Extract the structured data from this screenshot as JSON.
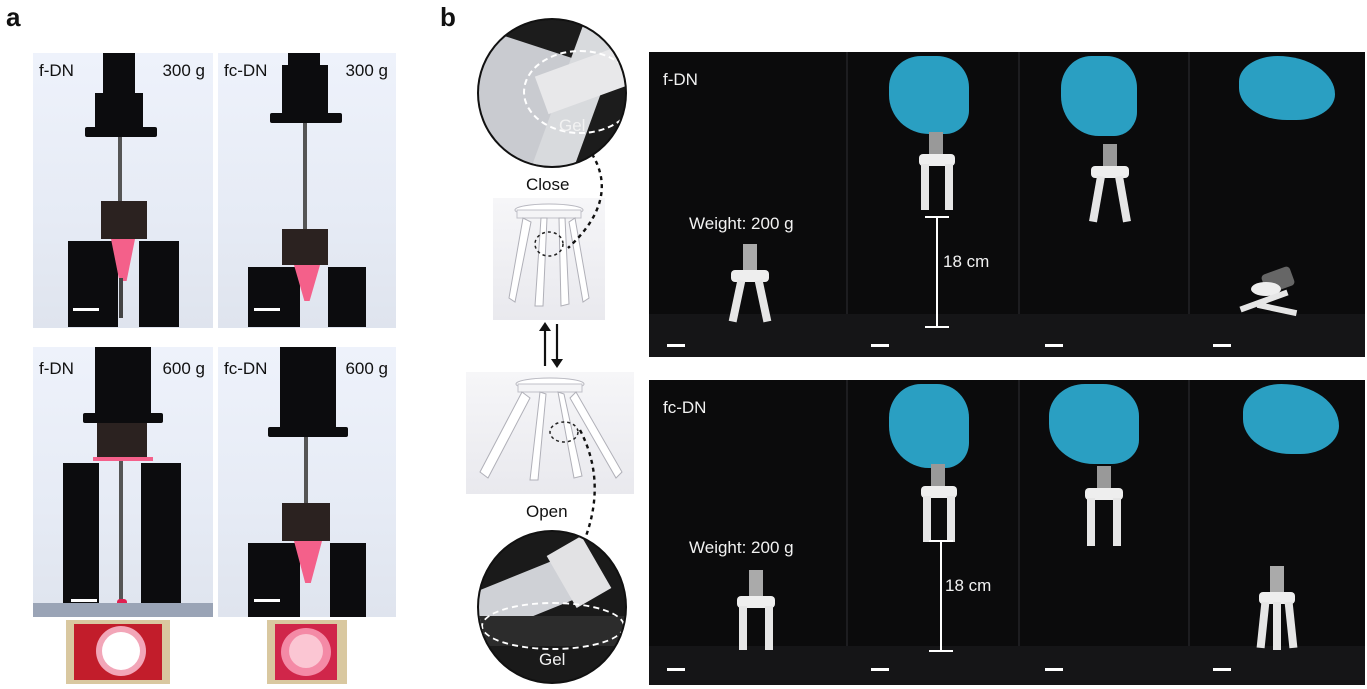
{
  "panel_a": {
    "letter": "a",
    "photos": [
      {
        "sample": "f-DN",
        "load": "300 g"
      },
      {
        "sample": "fc-DN",
        "load": "300 g"
      },
      {
        "sample": "f-DN",
        "load": "600 g"
      },
      {
        "sample": "fc-DN",
        "load": "600 g"
      }
    ]
  },
  "panel_b": {
    "letter": "b",
    "gripper": {
      "close_label": "Close",
      "open_label": "Open",
      "gel_label_top": "Gel",
      "gel_label_bottom": "Gel"
    },
    "rows": [
      {
        "sample": "f-DN",
        "weight_label": "Weight: 200 g",
        "height_label": "18 cm"
      },
      {
        "sample": "fc-DN",
        "weight_label": "Weight: 200 g",
        "height_label": "18 cm"
      }
    ]
  },
  "colors": {
    "gel_pink": "#f4608a",
    "glove_blue": "#2a9fc2",
    "background_dark": "#0b0b0c"
  }
}
